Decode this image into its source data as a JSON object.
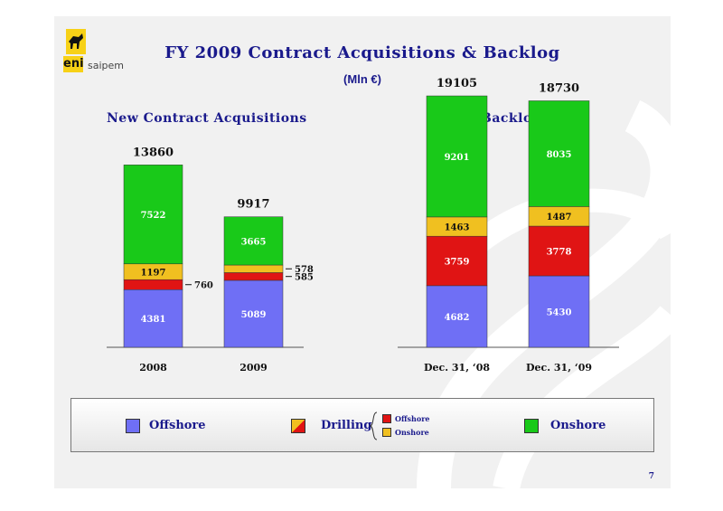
{
  "title": "FY 2009 Contract Acquisitions & Backlog",
  "subtitle": "(Mln €)",
  "logo": {
    "eni": "eni",
    "saipem": "saipem"
  },
  "page_number": "7",
  "colors": {
    "offshore": "#6f6ff5",
    "drilling_offshore": "#e01414",
    "drilling_onshore": "#f0c020",
    "onshore": "#19c919",
    "text": "#1a1a8c",
    "background": "#f1f1f1"
  },
  "legend": {
    "offshore": "Offshore",
    "drilling": "Drilling",
    "drilling_offshore": "Offshore",
    "drilling_onshore": "Onshore",
    "onshore": "Onshore"
  },
  "chart_data": [
    {
      "type": "bar",
      "stacked": true,
      "title": "New Contract Acquisitions",
      "categories": [
        "2008",
        "2009"
      ],
      "totals": [
        "13860",
        "9917"
      ],
      "series": [
        {
          "key": "offshore",
          "values": [
            4381,
            5089
          ],
          "labels": [
            "4381",
            "5089"
          ]
        },
        {
          "key": "drilling_offshore",
          "values": [
            760,
            585
          ],
          "labels": [
            "760",
            "585"
          ]
        },
        {
          "key": "drilling_onshore",
          "values": [
            1197,
            578
          ],
          "labels": [
            "1197",
            "578"
          ]
        },
        {
          "key": "onshore",
          "values": [
            7522,
            3665
          ],
          "labels": [
            "7522",
            "3665"
          ]
        }
      ]
    },
    {
      "type": "bar",
      "stacked": true,
      "title": "Backlog",
      "categories": [
        "Dec. 31, ‘08",
        "Dec. 31, ‘09"
      ],
      "totals": [
        "19105",
        "18730"
      ],
      "series": [
        {
          "key": "offshore",
          "values": [
            4682,
            5430
          ],
          "labels": [
            "4682",
            "5430"
          ]
        },
        {
          "key": "drilling_offshore",
          "values": [
            3759,
            3778
          ],
          "labels": [
            "3759",
            "3778"
          ]
        },
        {
          "key": "drilling_onshore",
          "values": [
            1463,
            1487
          ],
          "labels": [
            "1463",
            "1487"
          ]
        },
        {
          "key": "onshore",
          "values": [
            9201,
            8035
          ],
          "labels": [
            "9201",
            "8035"
          ]
        }
      ]
    }
  ]
}
